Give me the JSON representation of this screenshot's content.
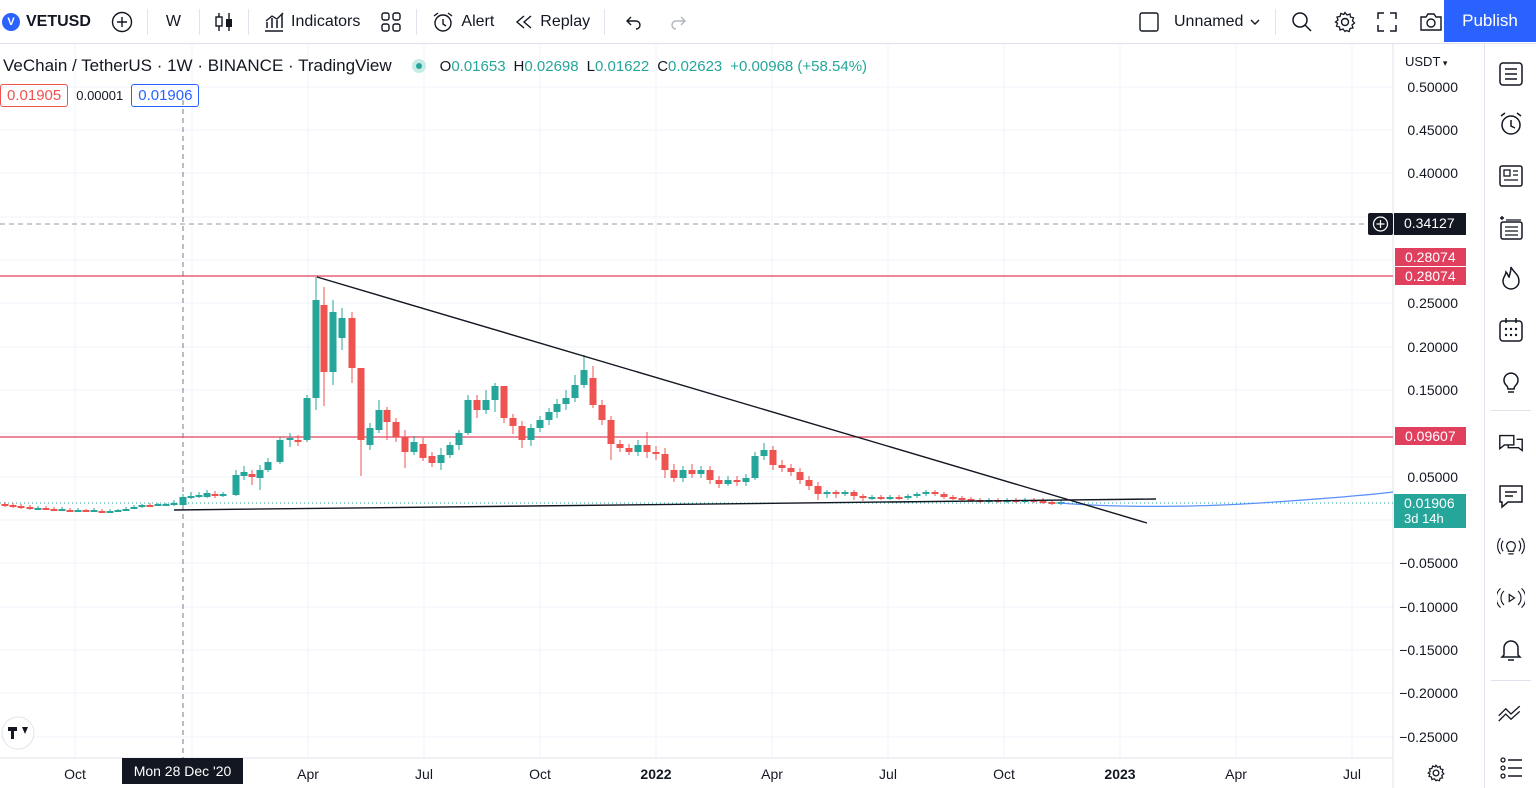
{
  "toolbar": {
    "symbol": "VETUSD",
    "logo_letter": "V",
    "interval": "W",
    "indicators_label": "Indicators",
    "alert_label": "Alert",
    "replay_label": "Replay",
    "layout_name": "Unnamed",
    "publish_label": "Publish"
  },
  "legend": {
    "title": "VeChain / TetherUS · 1W · BINANCE · TradingView",
    "o_label": "O",
    "o": "0.01653",
    "h_label": "H",
    "h": "0.02698",
    "l_label": "L",
    "l": "0.01622",
    "c_label": "C",
    "c": "0.02623",
    "change": "+0.00968 (+58.54%)",
    "bid": "0.01905",
    "spread": "0.00001",
    "ask": "0.01906"
  },
  "colors": {
    "up": "#26a69a",
    "down": "#ef5350",
    "accent": "#2962ff",
    "hline": "#e0405e"
  },
  "axis": {
    "currency": "USDT",
    "price_labels": [
      "0.50000",
      "0.45000",
      "0.40000",
      "0.25000",
      "0.20000",
      "0.15000",
      "0.05000",
      "−0.05000",
      "−0.10000",
      "−0.15000",
      "−0.20000",
      "−0.25000"
    ],
    "time_labels": [
      "Oct",
      "Apr",
      "Jul",
      "Oct",
      "2022",
      "Apr",
      "Jul",
      "Oct",
      "2023",
      "Apr",
      "Jul"
    ],
    "crosshair_date": "Mon 28 Dec '20",
    "crosshair_price": "0.34127"
  },
  "tags": {
    "resistance_top_a": "0.28074",
    "resistance_top_b": "0.28074",
    "resistance_mid": "0.09607",
    "last_price": "0.01906",
    "countdown": "3d 14h"
  },
  "icons": {
    "watchlist": "watchlist-icon",
    "alerts": "alarm-clock-icon",
    "news": "news-icon",
    "data-window": "data-window-icon",
    "hotlist": "fire-icon",
    "calendar": "calendar-icon",
    "ideas": "lightbulb-icon",
    "chat": "chat-icon",
    "messages": "message-icon",
    "streams": "broadcast-bulb-icon",
    "live": "live-icon",
    "notifications": "bell-icon",
    "trading": "trading-icon",
    "more": "more-icon"
  }
}
